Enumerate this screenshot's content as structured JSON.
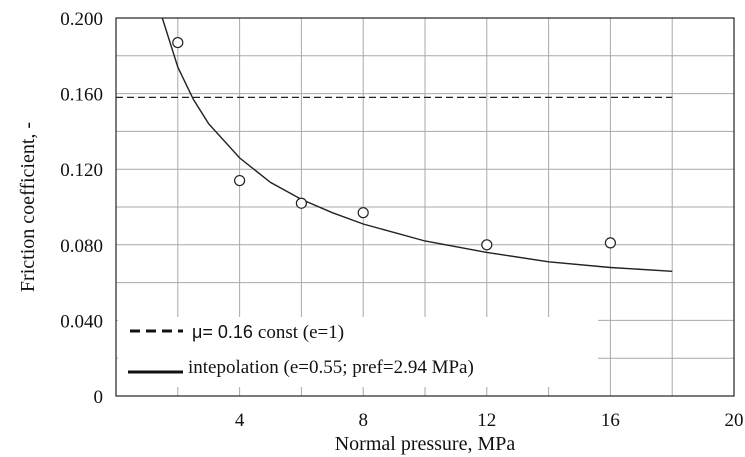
{
  "chart_data": {
    "type": "scatter",
    "title": "",
    "xlabel": "Normal pressure, MPa",
    "ylabel": "Friction coefficient, -",
    "xlim": [
      0,
      20
    ],
    "ylim": [
      0,
      0.2
    ],
    "x_ticks": [
      {
        "value": 4,
        "label": "4"
      },
      {
        "value": 8,
        "label": "8"
      },
      {
        "value": 12,
        "label": "12"
      },
      {
        "value": 16,
        "label": "16"
      },
      {
        "value": 20,
        "label": "20"
      }
    ],
    "y_ticks": [
      {
        "value": 0,
        "label": "0"
      },
      {
        "value": 0.04,
        "label": "0.040"
      },
      {
        "value": 0.08,
        "label": "0.080"
      },
      {
        "value": 0.12,
        "label": "0.120"
      },
      {
        "value": 0.16,
        "label": "0.160"
      },
      {
        "value": 0.2,
        "label": "0.200"
      }
    ],
    "x_minor_grid": [
      2,
      6,
      10,
      14,
      18
    ],
    "y_minor_grid": [
      0.02,
      0.06,
      0.1,
      0.14,
      0.18
    ],
    "grid": true,
    "series": [
      {
        "kind": "scatter",
        "marker": "open-circle",
        "x": [
          2,
          4,
          6,
          8,
          12,
          16
        ],
        "y": [
          0.187,
          0.114,
          0.102,
          0.097,
          0.08,
          0.081
        ]
      },
      {
        "name": "μ= 0.16 const (e=1)",
        "kind": "line",
        "style": "dashed",
        "x": [
          0,
          18
        ],
        "y": [
          0.158,
          0.158
        ]
      },
      {
        "name": "intepolation (e=0.55; pref=2.94 MPa)",
        "kind": "line",
        "style": "solid",
        "x": [
          1.5,
          2,
          2.5,
          3,
          4,
          5,
          6,
          7,
          8,
          10,
          12,
          14,
          16,
          18
        ],
        "y": [
          0.2,
          0.174,
          0.157,
          0.144,
          0.126,
          0.113,
          0.104,
          0.097,
          0.091,
          0.082,
          0.076,
          0.071,
          0.068,
          0.066
        ]
      }
    ],
    "legend": {
      "placement": "bottom-left",
      "entries": [
        {
          "prefix": "μ= 0.16 ",
          "suffix": "const (e=1)",
          "style": "dashed"
        },
        {
          "prefix": "",
          "suffix": "intepolation (e=0.55; pref=2.94 MPa)",
          "style": "solid"
        }
      ]
    },
    "colors": {
      "line": "#222222",
      "grid": "#a9a9a9",
      "marker_fill": "#ffffff"
    }
  }
}
